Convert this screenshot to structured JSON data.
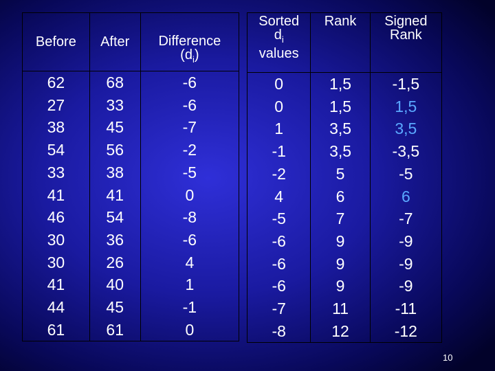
{
  "left_table": {
    "headers": {
      "before": "Before",
      "after": "After",
      "difference": "Difference",
      "difference_sub_open": "(d",
      "difference_sub": "i",
      "difference_sub_close": ")"
    },
    "before": [
      "62",
      "27",
      "38",
      "54",
      "33",
      "41",
      "46",
      "30",
      "30",
      "41",
      "44",
      "61"
    ],
    "after": [
      "68",
      "33",
      "45",
      "56",
      "38",
      "41",
      "54",
      "36",
      "26",
      "40",
      "45",
      "61"
    ],
    "difference": [
      "-6",
      "-6",
      "-7",
      "-2",
      "-5",
      "0",
      "-8",
      "-6",
      "4",
      "1",
      "-1",
      "0"
    ]
  },
  "right_table": {
    "headers": {
      "sorted_line1": "Sorted",
      "sorted_line2": "d",
      "sorted_line2_sub": "i",
      "sorted_line3": "values",
      "rank": "Rank",
      "signed_line1": "Signed",
      "signed_line2": "Rank"
    },
    "sorted": [
      "0",
      "0",
      "1",
      "-1",
      "-2",
      "4",
      "-5",
      "-6",
      "-6",
      "-6",
      "-7",
      "-8"
    ],
    "rank": [
      "1,5",
      "1,5",
      "3,5",
      "3,5",
      "5",
      "6",
      "7",
      "9",
      "9",
      "9",
      "11",
      "12"
    ],
    "signed_rank": [
      "-1,5",
      "1,5",
      "3,5",
      "-3,5",
      "-5",
      "6",
      "-7",
      "-9",
      "-9",
      "-9",
      "-11",
      "-12"
    ],
    "highlighted_signed_rows": [
      1,
      2,
      5
    ],
    "colors": {
      "text": "#ffffff",
      "highlight": "#5aa8ff",
      "background": "#1a1aa0"
    }
  },
  "slide_number": "10"
}
